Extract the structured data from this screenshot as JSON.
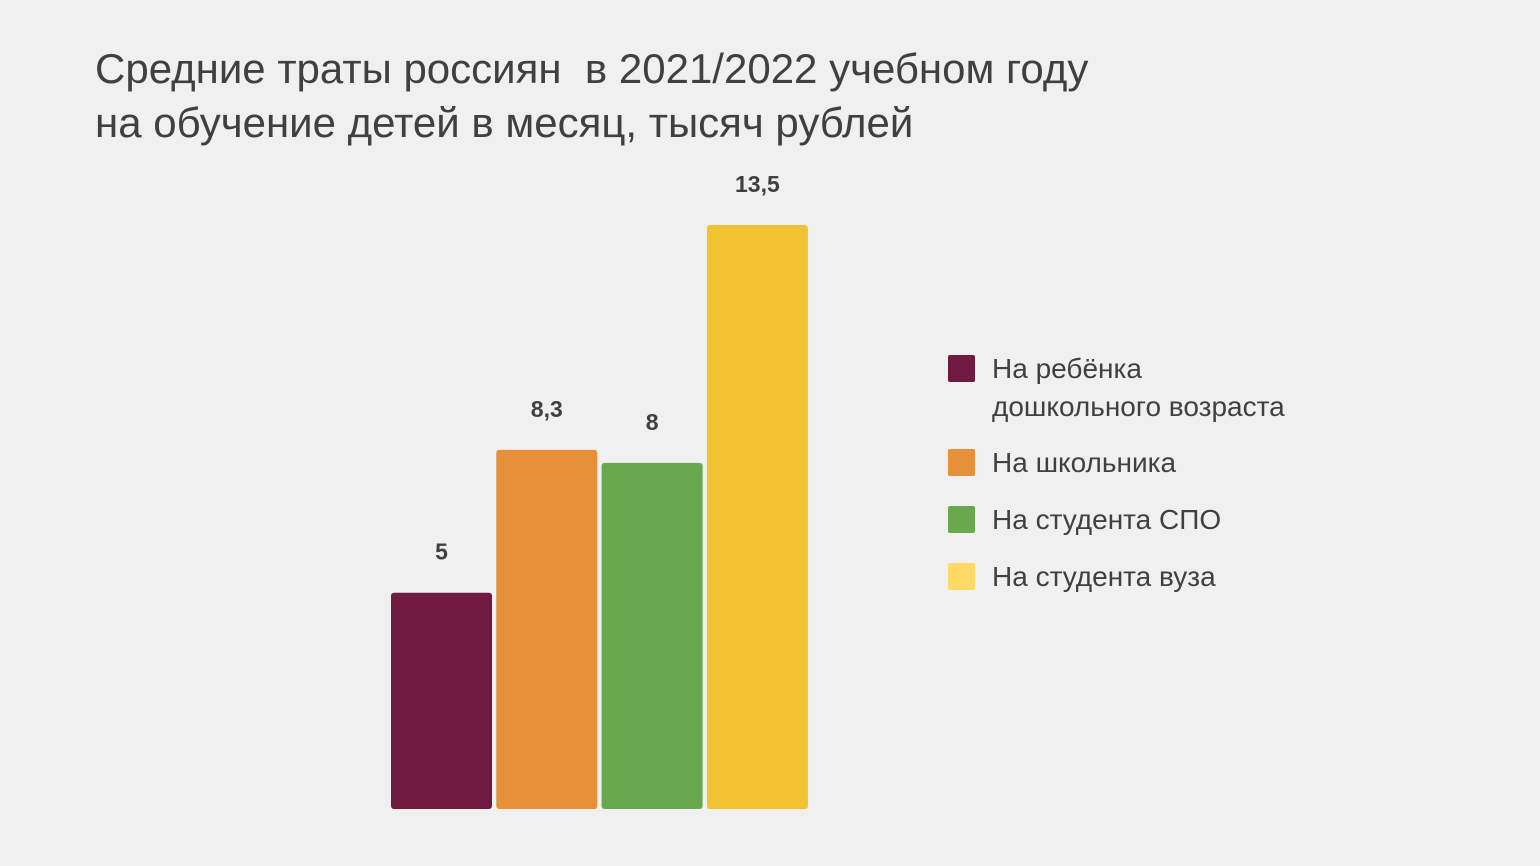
{
  "title": {
    "line1": "Средние траты россиян  в 2021/2022 учебном году",
    "line2": "на обучение детей в месяц, тысяч рублей"
  },
  "chart_data": {
    "type": "bar",
    "title": "Средние траты россиян в 2021/2022 учебном году на обучение детей в месяц, тысяч рублей",
    "categories": [
      "На ребёнка дошкольного возраста",
      "На школьника",
      "На студента СПО",
      "На студента вуза"
    ],
    "values": [
      5,
      8.3,
      8,
      13.5
    ],
    "value_labels": [
      "5",
      "8,3",
      "8",
      "13,5"
    ],
    "colors": [
      "#701a42",
      "#e6903a",
      "#6aa84f",
      "#f1c232"
    ],
    "ylim": [
      0,
      13.5
    ],
    "grid": false,
    "axes_visible": false,
    "legend_position": "right"
  },
  "legend": {
    "items": [
      {
        "label": "На ребёнка\nдошкольного возраста",
        "color": "#701a42"
      },
      {
        "label": "На школьника",
        "color": "#e6903a"
      },
      {
        "label": "На студента СПО",
        "color": "#6aa84f"
      },
      {
        "label": "На студента вуза",
        "color": "#ffd966"
      }
    ]
  }
}
